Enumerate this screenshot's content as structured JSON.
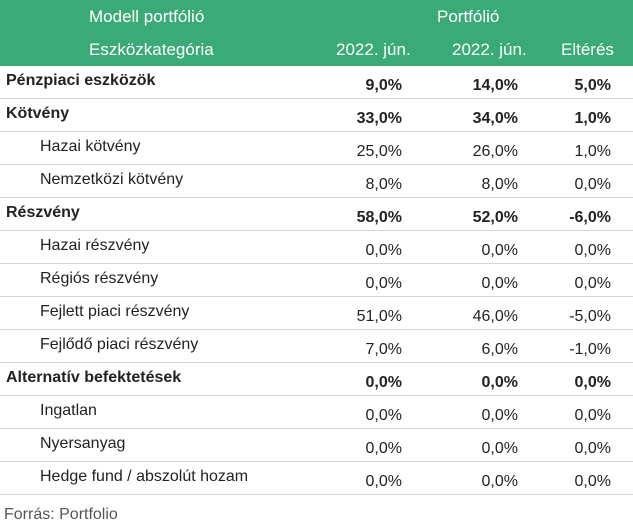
{
  "header": {
    "model_label": "Modell portfólió",
    "portfolio_label": "Portfólió",
    "category_label": "Eszközkategória",
    "col1": "2022. jún.",
    "col2": "2022. jún.",
    "col3": "Eltérés"
  },
  "rows": [
    {
      "label": "Pénzpiaci eszközök",
      "level": "main",
      "model": "9,0%",
      "portfolio": "14,0%",
      "diff": "5,0%"
    },
    {
      "label": "Kötvény",
      "level": "main",
      "model": "33,0%",
      "portfolio": "34,0%",
      "diff": "1,0%"
    },
    {
      "label": "Hazai kötvény",
      "level": "sub",
      "model": "25,0%",
      "portfolio": "26,0%",
      "diff": "1,0%"
    },
    {
      "label": "Nemzetközi kötvény",
      "level": "sub",
      "model": "8,0%",
      "portfolio": "8,0%",
      "diff": "0,0%"
    },
    {
      "label": "Részvény",
      "level": "main",
      "model": "58,0%",
      "portfolio": "52,0%",
      "diff": "-6,0%"
    },
    {
      "label": "Hazai részvény",
      "level": "sub",
      "model": "0,0%",
      "portfolio": "0,0%",
      "diff": "0,0%"
    },
    {
      "label": "Régiós részvény",
      "level": "sub",
      "model": "0,0%",
      "portfolio": "0,0%",
      "diff": "0,0%"
    },
    {
      "label": "Fejlett piaci részvény",
      "level": "sub",
      "model": "51,0%",
      "portfolio": "46,0%",
      "diff": "-5,0%"
    },
    {
      "label": "Fejlődő piaci részvény",
      "level": "sub",
      "model": "7,0%",
      "portfolio": "6,0%",
      "diff": "-1,0%"
    },
    {
      "label": "Alternatív befektetések",
      "level": "main",
      "model": "0,0%",
      "portfolio": "0,0%",
      "diff": "0,0%"
    },
    {
      "label": "Ingatlan",
      "level": "sub",
      "model": "0,0%",
      "portfolio": "0,0%",
      "diff": "0,0%"
    },
    {
      "label": "Nyersanyag",
      "level": "sub",
      "model": "0,0%",
      "portfolio": "0,0%",
      "diff": "0,0%"
    },
    {
      "label": "Hedge fund / abszolút hozam",
      "level": "sub",
      "model": "0,0%",
      "portfolio": "0,0%",
      "diff": "0,0%"
    }
  ],
  "source": "Forrás: Portfolio",
  "colors": {
    "header_bg": "#3aaa78",
    "header_text": "#ffffff"
  }
}
